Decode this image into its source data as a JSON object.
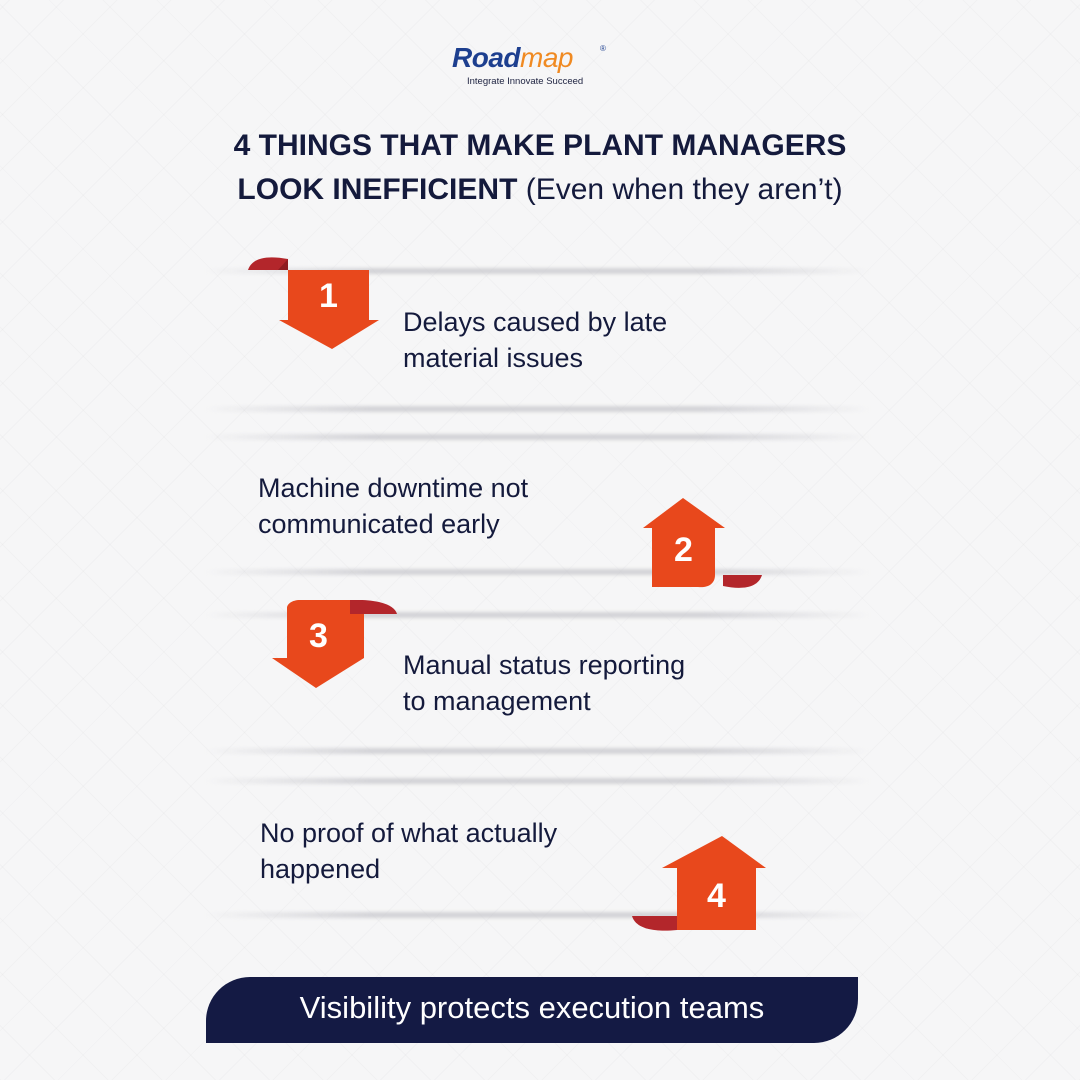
{
  "brand": {
    "logo_word_bold": "Road",
    "logo_word_light": "map",
    "registered_mark": "®",
    "tagline": "Integrate Innovate Succeed"
  },
  "headline": {
    "line1": "4 THINGS THAT MAKE PLANT MANAGERS",
    "line2_bold": "LOOK INEFFICIENT",
    "line2_regular": "(Even when they aren’t)"
  },
  "items": [
    {
      "number": "1",
      "line1": "Delays caused by late",
      "line2": "material issues",
      "arrow": "down"
    },
    {
      "number": "2",
      "line1": "Machine downtime not",
      "line2": "communicated early",
      "arrow": "up"
    },
    {
      "number": "3",
      "line1": "Manual status reporting",
      "line2": "to management",
      "arrow": "down"
    },
    {
      "number": "4",
      "line1": "No proof of what actually",
      "line2": "happened",
      "arrow": "up"
    }
  ],
  "footer_banner": "Visibility protects execution teams",
  "colors": {
    "accent_orange": "#e8481c",
    "curl_red": "#b3262b",
    "navy": "#141a44",
    "logo_blue": "#1d3f8f",
    "logo_orange": "#f08a22"
  }
}
